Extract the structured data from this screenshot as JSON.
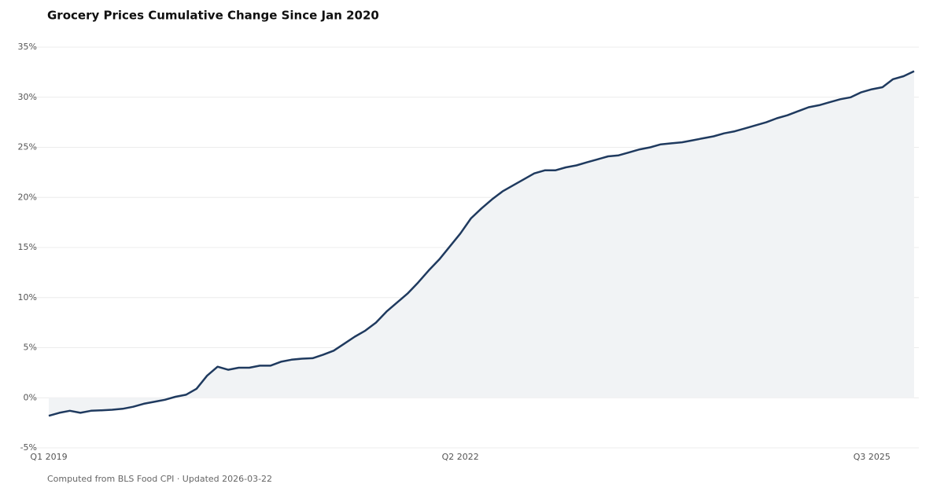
{
  "chart_data": {
    "type": "area",
    "title": "Grocery Prices Cumulative Change Since Jan 2020",
    "footnote": "Computed from BLS Food CPI · Updated 2026-03-22",
    "categories": [
      "Q1 2019",
      null,
      null,
      null,
      null,
      null,
      null,
      null,
      null,
      null,
      null,
      null,
      null,
      null,
      null,
      null,
      null,
      null,
      null,
      null,
      null,
      null,
      null,
      null,
      null,
      null,
      null,
      null,
      null,
      null,
      null,
      null,
      null,
      null,
      null,
      null,
      null,
      null,
      null,
      "Q2 2022",
      null,
      null,
      null,
      null,
      null,
      null,
      null,
      null,
      null,
      null,
      null,
      null,
      null,
      null,
      null,
      null,
      null,
      null,
      null,
      null,
      null,
      null,
      null,
      null,
      null,
      null,
      null,
      null,
      null,
      null,
      null,
      null,
      null,
      null,
      null,
      null,
      null,
      null,
      "Q3 2025",
      null,
      null,
      null,
      null
    ],
    "values": [
      -1.8,
      -1.5,
      -1.3,
      -1.5,
      -1.3,
      -1.25,
      -1.2,
      -1.1,
      -0.9,
      -0.6,
      -0.4,
      -0.2,
      0.1,
      0.3,
      0.9,
      2.2,
      3.1,
      2.8,
      3.0,
      3.0,
      3.2,
      3.2,
      3.6,
      3.8,
      3.9,
      3.95,
      4.3,
      4.7,
      5.4,
      6.1,
      6.7,
      7.5,
      8.6,
      9.5,
      10.4,
      11.5,
      12.7,
      13.8,
      15.1,
      16.4,
      17.9,
      18.9,
      19.8,
      20.6,
      21.2,
      21.8,
      22.4,
      22.7,
      22.7,
      23.0,
      23.2,
      23.5,
      23.8,
      24.1,
      24.2,
      24.5,
      24.8,
      25.0,
      25.3,
      25.4,
      25.5,
      25.7,
      25.9,
      26.1,
      26.4,
      26.6,
      26.9,
      27.2,
      27.5,
      27.9,
      28.2,
      28.6,
      29.0,
      29.2,
      29.5,
      29.8,
      30.0,
      30.5,
      30.8,
      31.0,
      31.8,
      32.1,
      32.6
    ],
    "color": "#1f3a5f",
    "fill": "#f1f3f5",
    "ylim": [
      -5,
      35
    ],
    "yticks": [
      {
        "value": -5,
        "label": "-5%"
      },
      {
        "value": 0,
        "label": "0%"
      },
      {
        "value": 5,
        "label": "5%"
      },
      {
        "value": 10,
        "label": "10%"
      },
      {
        "value": 15,
        "label": "15%"
      },
      {
        "value": 20,
        "label": "20%"
      },
      {
        "value": 25,
        "label": "25%"
      },
      {
        "value": 30,
        "label": "30%"
      },
      {
        "value": 35,
        "label": "35%"
      }
    ],
    "grid": true
  }
}
